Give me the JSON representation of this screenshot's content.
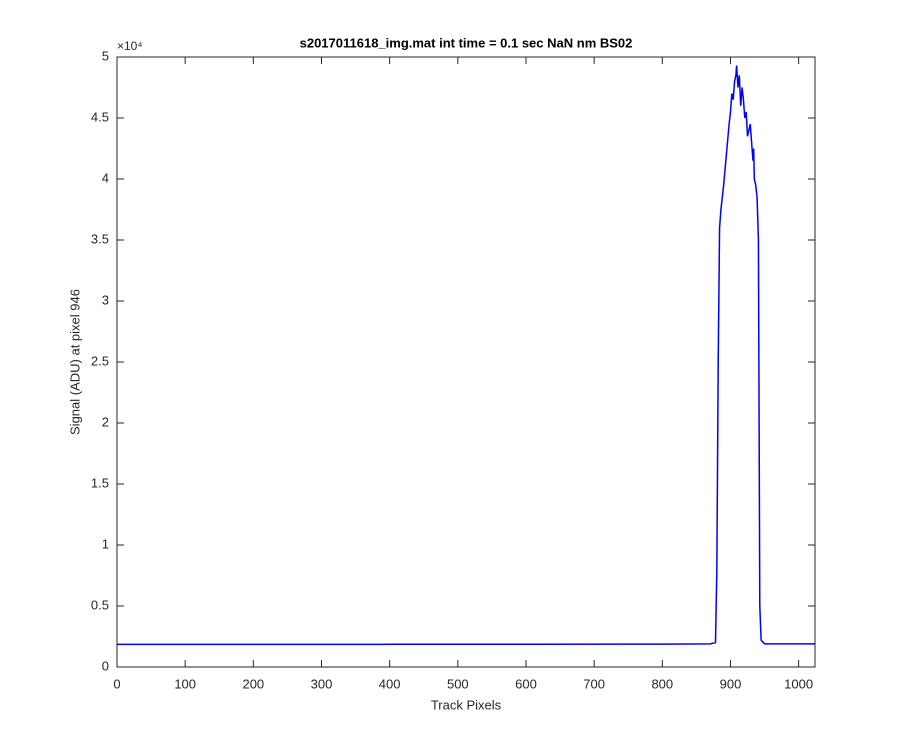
{
  "chart_data": {
    "type": "line",
    "title": "s2017011618_img.mat int time = 0.1 sec  NaN nm BS02",
    "x_label": "Track Pixels",
    "y_label": "Signal (ADU) at pixel 946",
    "y_multiplier": "×10⁴",
    "x": [
      0,
      200,
      400,
      600,
      800,
      870,
      878,
      880,
      882,
      884,
      886,
      890,
      894,
      898,
      900,
      902,
      904,
      906,
      908,
      909,
      911,
      913,
      915,
      917,
      919,
      921,
      923,
      925,
      927,
      929,
      931,
      933,
      934,
      935,
      937,
      939,
      941,
      942,
      943,
      945,
      950,
      1000,
      1024
    ],
    "series": [
      {
        "color": "#0000ff",
        "values": [
          0.185,
          0.185,
          0.186,
          0.186,
          0.188,
          0.19,
          0.2,
          0.8,
          2.5,
          3.6,
          3.75,
          3.95,
          4.2,
          4.45,
          4.55,
          4.7,
          4.65,
          4.8,
          4.85,
          4.93,
          4.75,
          4.85,
          4.6,
          4.75,
          4.65,
          4.5,
          4.55,
          4.35,
          4.4,
          4.45,
          4.3,
          4.15,
          4.25,
          4.0,
          3.95,
          3.85,
          3.5,
          2.0,
          0.5,
          0.22,
          0.19,
          0.19,
          0.19
        ]
      }
    ],
    "xlim": [
      0,
      1024
    ],
    "xticks": [
      0,
      100,
      200,
      300,
      400,
      500,
      600,
      700,
      800,
      900,
      1000
    ],
    "ylim": [
      0,
      5
    ],
    "yticks": [
      0,
      0.5,
      1,
      1.5,
      2,
      2.5,
      3,
      3.5,
      4,
      4.5,
      5
    ]
  }
}
